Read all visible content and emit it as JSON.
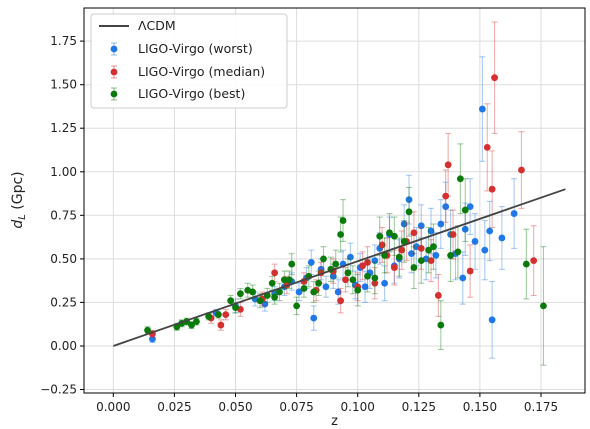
{
  "chart_data": {
    "type": "scatter",
    "xlabel": "z",
    "ylabel": "d_L (Gpc)",
    "xlim": [
      -0.012,
      0.193
    ],
    "ylim": [
      -0.27,
      1.94
    ],
    "xticks": [
      0.0,
      0.025,
      0.05,
      0.075,
      0.1,
      0.125,
      0.15,
      0.175
    ],
    "xtick_labels": [
      "0.000",
      "0.025",
      "0.050",
      "0.075",
      "0.100",
      "0.125",
      "0.150",
      "0.175"
    ],
    "yticks": [
      -0.25,
      0.0,
      0.25,
      0.5,
      0.75,
      1.0,
      1.25,
      1.5,
      1.75
    ],
    "ytick_labels": [
      "−0.25",
      "0.00",
      "0.25",
      "0.50",
      "0.75",
      "1.00",
      "1.25",
      "1.50",
      "1.75"
    ],
    "grid": true,
    "legend_position": "top-left",
    "legend": {
      "entries": [
        {
          "label": "ΛCDM",
          "color": "#444444",
          "kind": "line"
        },
        {
          "label": "LIGO-Virgo (worst)",
          "color": "#1f77e8",
          "kind": "errorbar"
        },
        {
          "label": "LIGO-Virgo (median)",
          "color": "#d62f2f",
          "kind": "errorbar"
        },
        {
          "label": "LIGO-Virgo (best)",
          "color": "#0a7a0a",
          "kind": "errorbar"
        }
      ]
    },
    "model_line": {
      "name": "ΛCDM",
      "color": "#444444",
      "x": [
        0.0,
        0.185
      ],
      "y": [
        0.0,
        0.9
      ]
    },
    "series": [
      {
        "name": "LIGO-Virgo (worst)",
        "color": "#1f77e8",
        "points": [
          [
            0.016,
            0.04,
            0.02
          ],
          [
            0.042,
            0.19,
            0.02
          ],
          [
            0.05,
            0.23,
            0.04
          ],
          [
            0.058,
            0.27,
            0.04
          ],
          [
            0.062,
            0.24,
            0.04
          ],
          [
            0.066,
            0.3,
            0.04
          ],
          [
            0.07,
            0.34,
            0.05
          ],
          [
            0.073,
            0.37,
            0.05
          ],
          [
            0.076,
            0.31,
            0.05
          ],
          [
            0.079,
            0.39,
            0.06
          ],
          [
            0.081,
            0.48,
            0.07
          ],
          [
            0.082,
            0.16,
            0.07
          ],
          [
            0.085,
            0.44,
            0.06
          ],
          [
            0.087,
            0.34,
            0.06
          ],
          [
            0.09,
            0.4,
            0.07
          ],
          [
            0.092,
            0.31,
            0.07
          ],
          [
            0.094,
            0.47,
            0.08
          ],
          [
            0.097,
            0.51,
            0.08
          ],
          [
            0.099,
            0.35,
            0.08
          ],
          [
            0.101,
            0.45,
            0.08
          ],
          [
            0.103,
            0.34,
            0.09
          ],
          [
            0.105,
            0.42,
            0.09
          ],
          [
            0.107,
            0.49,
            0.09
          ],
          [
            0.109,
            0.56,
            0.09
          ],
          [
            0.111,
            0.36,
            0.1
          ],
          [
            0.113,
            0.64,
            0.1
          ],
          [
            0.115,
            0.46,
            0.1
          ],
          [
            0.117,
            0.5,
            0.11
          ],
          [
            0.119,
            0.7,
            0.11
          ],
          [
            0.121,
            0.84,
            0.14
          ],
          [
            0.122,
            0.53,
            0.11
          ],
          [
            0.124,
            0.57,
            0.11
          ],
          [
            0.126,
            0.69,
            0.12
          ],
          [
            0.128,
            0.5,
            0.12
          ],
          [
            0.13,
            0.66,
            0.13
          ],
          [
            0.132,
            0.52,
            0.13
          ],
          [
            0.134,
            0.7,
            0.14
          ],
          [
            0.136,
            0.8,
            0.14
          ],
          [
            0.138,
            0.64,
            0.14
          ],
          [
            0.14,
            0.53,
            0.15
          ],
          [
            0.143,
            0.39,
            0.15
          ],
          [
            0.144,
            0.67,
            0.15
          ],
          [
            0.146,
            0.8,
            0.16
          ],
          [
            0.148,
            0.6,
            0.16
          ],
          [
            0.151,
            1.36,
            0.3
          ],
          [
            0.152,
            0.55,
            0.17
          ],
          [
            0.154,
            0.66,
            0.17
          ],
          [
            0.155,
            0.15,
            0.22
          ],
          [
            0.159,
            0.62,
            0.18
          ],
          [
            0.164,
            0.76,
            0.2
          ]
        ]
      },
      {
        "name": "LIGO-Virgo (median)",
        "color": "#d62f2f",
        "points": [
          [
            0.016,
            0.07,
            0.02
          ],
          [
            0.04,
            0.16,
            0.03
          ],
          [
            0.044,
            0.12,
            0.03
          ],
          [
            0.046,
            0.18,
            0.03
          ],
          [
            0.052,
            0.21,
            0.04
          ],
          [
            0.061,
            0.27,
            0.04
          ],
          [
            0.066,
            0.42,
            0.05
          ],
          [
            0.071,
            0.35,
            0.05
          ],
          [
            0.078,
            0.37,
            0.05
          ],
          [
            0.083,
            0.32,
            0.06
          ],
          [
            0.085,
            0.42,
            0.06
          ],
          [
            0.09,
            0.43,
            0.07
          ],
          [
            0.093,
            0.26,
            0.07
          ],
          [
            0.095,
            0.38,
            0.07
          ],
          [
            0.1,
            0.34,
            0.08
          ],
          [
            0.102,
            0.46,
            0.08
          ],
          [
            0.104,
            0.48,
            0.09
          ],
          [
            0.107,
            0.36,
            0.09
          ],
          [
            0.11,
            0.58,
            0.1
          ],
          [
            0.112,
            0.52,
            0.1
          ],
          [
            0.115,
            0.45,
            0.1
          ],
          [
            0.118,
            0.55,
            0.11
          ],
          [
            0.12,
            0.6,
            0.11
          ],
          [
            0.123,
            0.65,
            0.12
          ],
          [
            0.126,
            0.56,
            0.12
          ],
          [
            0.13,
            0.49,
            0.12
          ],
          [
            0.133,
            0.29,
            0.12
          ],
          [
            0.136,
            0.86,
            0.15
          ],
          [
            0.137,
            1.04,
            0.18
          ],
          [
            0.139,
            0.64,
            0.14
          ],
          [
            0.146,
            0.43,
            0.15
          ],
          [
            0.153,
            1.14,
            0.25
          ],
          [
            0.155,
            0.9,
            0.22
          ],
          [
            0.156,
            1.54,
            0.32
          ],
          [
            0.167,
            1.01,
            0.22
          ],
          [
            0.172,
            0.49,
            0.2
          ]
        ]
      },
      {
        "name": "LIGO-Virgo (best)",
        "color": "#0a7a0a",
        "points": [
          [
            0.014,
            0.09,
            0.02
          ],
          [
            0.026,
            0.11,
            0.02
          ],
          [
            0.028,
            0.13,
            0.02
          ],
          [
            0.03,
            0.14,
            0.02
          ],
          [
            0.032,
            0.12,
            0.02
          ],
          [
            0.034,
            0.14,
            0.02
          ],
          [
            0.039,
            0.17,
            0.02
          ],
          [
            0.043,
            0.18,
            0.02
          ],
          [
            0.048,
            0.26,
            0.03
          ],
          [
            0.05,
            0.22,
            0.03
          ],
          [
            0.052,
            0.3,
            0.03
          ],
          [
            0.055,
            0.32,
            0.04
          ],
          [
            0.057,
            0.31,
            0.04
          ],
          [
            0.06,
            0.26,
            0.04
          ],
          [
            0.063,
            0.29,
            0.04
          ],
          [
            0.065,
            0.36,
            0.04
          ],
          [
            0.066,
            0.28,
            0.04
          ],
          [
            0.068,
            0.31,
            0.05
          ],
          [
            0.07,
            0.38,
            0.05
          ],
          [
            0.072,
            0.38,
            0.05
          ],
          [
            0.073,
            0.47,
            0.06
          ],
          [
            0.075,
            0.23,
            0.05
          ],
          [
            0.078,
            0.33,
            0.05
          ],
          [
            0.08,
            0.4,
            0.06
          ],
          [
            0.082,
            0.31,
            0.06
          ],
          [
            0.084,
            0.36,
            0.07
          ],
          [
            0.086,
            0.5,
            0.07
          ],
          [
            0.089,
            0.44,
            0.07
          ],
          [
            0.091,
            0.47,
            0.08
          ],
          [
            0.093,
            0.64,
            0.1
          ],
          [
            0.094,
            0.72,
            0.12
          ],
          [
            0.096,
            0.42,
            0.08
          ],
          [
            0.098,
            0.38,
            0.08
          ],
          [
            0.1,
            0.32,
            0.09
          ],
          [
            0.104,
            0.4,
            0.09
          ],
          [
            0.107,
            0.39,
            0.09
          ],
          [
            0.109,
            0.63,
            0.11
          ],
          [
            0.111,
            0.52,
            0.1
          ],
          [
            0.113,
            0.65,
            0.11
          ],
          [
            0.115,
            0.63,
            0.11
          ],
          [
            0.117,
            0.51,
            0.11
          ],
          [
            0.119,
            0.6,
            0.12
          ],
          [
            0.121,
            0.77,
            0.14
          ],
          [
            0.123,
            0.45,
            0.12
          ],
          [
            0.126,
            0.49,
            0.13
          ],
          [
            0.129,
            0.55,
            0.13
          ],
          [
            0.131,
            0.57,
            0.13
          ],
          [
            0.134,
            0.12,
            0.14
          ],
          [
            0.138,
            0.52,
            0.15
          ],
          [
            0.141,
            0.54,
            0.15
          ],
          [
            0.142,
            0.96,
            0.2
          ],
          [
            0.144,
            0.78,
            0.18
          ],
          [
            0.169,
            0.47,
            0.2
          ],
          [
            0.176,
            0.23,
            0.34
          ]
        ]
      }
    ]
  }
}
